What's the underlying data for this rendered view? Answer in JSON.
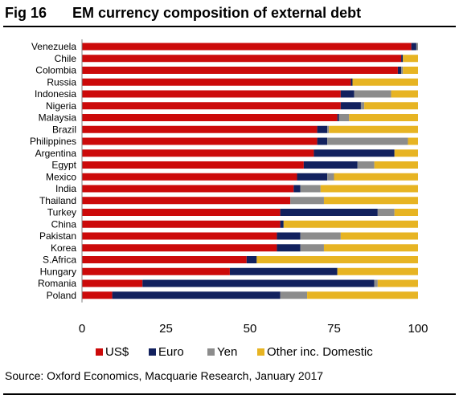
{
  "header": {
    "fig_number": "Fig 16",
    "title": "EM currency composition of external debt"
  },
  "footer": {
    "source": "Source: Oxford Economics, Macquarie Research, January 2017"
  },
  "chart_data": {
    "type": "bar",
    "orientation": "horizontal",
    "stacked": true,
    "title": "EM currency composition of external debt",
    "xlabel": "",
    "ylabel": "",
    "xlim": [
      0,
      100
    ],
    "xticks": [
      0,
      25,
      50,
      75,
      100
    ],
    "grid": false,
    "legend_position": "bottom",
    "categories": [
      "Venezuela",
      "Chile",
      "Colombia",
      "Russia",
      "Indonesia",
      "Nigeria",
      "Malaysia",
      "Brazil",
      "Philippines",
      "Argentina",
      "Egypt",
      "Mexico",
      "India",
      "Thailand",
      "Turkey",
      "China",
      "Pakistan",
      "Korea",
      "S.Africa",
      "Hungary",
      "Romania",
      "Poland"
    ],
    "series": [
      {
        "name": "US$",
        "color": "#cc0a0a",
        "values": [
          98,
          95,
          94,
          80,
          77,
          77,
          76,
          70,
          70,
          69,
          66,
          64,
          63,
          62,
          59,
          59,
          58,
          58,
          49,
          44,
          18,
          9
        ]
      },
      {
        "name": "Euro",
        "color": "#12215e",
        "values": [
          1.5,
          0.5,
          1,
          0.5,
          4,
          6,
          0.5,
          3,
          3,
          24,
          16,
          9,
          2,
          0,
          29,
          1,
          7,
          7,
          3,
          32,
          69,
          50
        ]
      },
      {
        "name": "Yen",
        "color": "#8c8c8c",
        "values": [
          0.5,
          0,
          0.5,
          0,
          11,
          1,
          3,
          0.5,
          24,
          0,
          5,
          2,
          6,
          10,
          5,
          0,
          12,
          7,
          0,
          0,
          1,
          8
        ]
      },
      {
        "name": "Other inc. Domestic",
        "color": "#e7b423",
        "values": [
          0,
          4.5,
          4.5,
          19.5,
          8,
          16,
          20.5,
          26.5,
          3,
          7,
          13,
          25,
          29,
          28,
          7,
          40,
          23,
          28,
          48,
          24,
          12,
          33
        ]
      }
    ]
  }
}
